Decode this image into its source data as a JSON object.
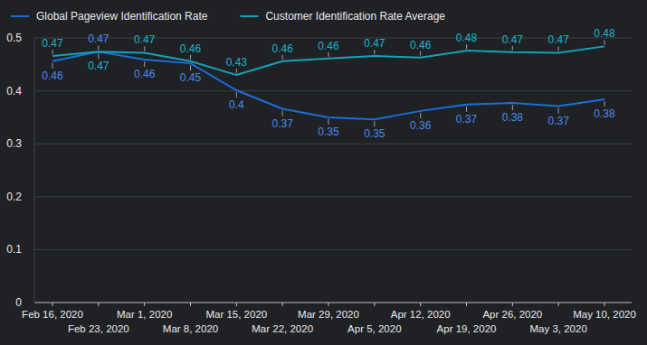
{
  "chart_data": {
    "type": "line",
    "categories": [
      "Feb 16, 2020",
      "Feb 23, 2020",
      "Mar 1, 2020",
      "Mar 8, 2020",
      "Mar 15, 2020",
      "Mar 22, 2020",
      "Mar 29, 2020",
      "Apr 5, 2020",
      "Apr 12, 2020",
      "Apr 19, 2020",
      "Apr 26, 2020",
      "May 3, 2020",
      "May 10, 2020"
    ],
    "series": [
      {
        "name": "Global Pageview Identification Rate",
        "color": "#1a6fdc",
        "values": [
          0.456,
          0.474,
          0.459,
          0.452,
          0.401,
          0.366,
          0.35,
          0.346,
          0.362,
          0.374,
          0.377,
          0.371,
          0.384
        ],
        "value_labels": [
          "0.46",
          "0.47",
          "0.46",
          "0.45",
          "0.4",
          "0.37",
          "0.35",
          "0.35",
          "0.36",
          "0.37",
          "0.38",
          "0.37",
          "0.38"
        ]
      },
      {
        "name": "Customer Identification Rate Average",
        "color": "#12a4b9",
        "values": [
          0.466,
          0.474,
          0.472,
          0.456,
          0.43,
          0.456,
          0.461,
          0.466,
          0.463,
          0.476,
          0.473,
          0.472,
          0.484
        ],
        "value_labels": [
          "0.47",
          "0.47",
          "0.47",
          "0.46",
          "0.43",
          "0.46",
          "0.46",
          "0.47",
          "0.46",
          "0.48",
          "0.47",
          "0.47",
          "0.48"
        ]
      }
    ],
    "ylim": [
      0,
      0.5
    ],
    "yticks": [
      0,
      0.1,
      0.2,
      0.3,
      0.4,
      0.5
    ],
    "grid": true,
    "legend": "top-left",
    "data_labels": true
  }
}
